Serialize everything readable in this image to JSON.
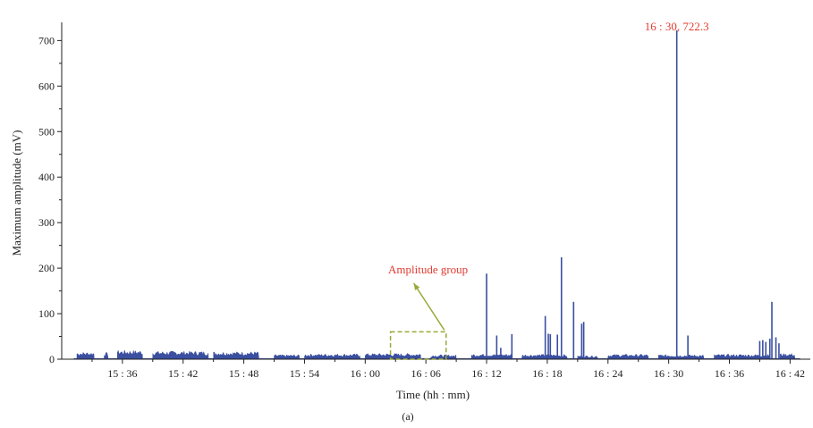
{
  "chart_data": {
    "type": "line",
    "title": "",
    "xlabel": "Time (hh : mm)",
    "ylabel": "Maximum amplitude (mV)",
    "caption": "(a)",
    "xlim_minutes": [
      15.5,
      16.7
    ],
    "x_range_hhmm": [
      "15:30",
      "16:44"
    ],
    "ylim": [
      0,
      740
    ],
    "yticks": [
      0,
      100,
      200,
      300,
      400,
      500,
      600,
      700
    ],
    "ytick_labels": [
      "0",
      "100",
      "200",
      "300",
      "400",
      "500",
      "600",
      "700"
    ],
    "xtick_minutes": [
      6,
      12,
      18,
      24,
      30,
      36,
      42,
      48,
      54,
      60,
      66,
      72
    ],
    "xtick_labels": [
      "15 : 36",
      "15 : 42",
      "15 : 48",
      "15 : 54",
      "16 : 00",
      "16 : 06",
      "16 : 12",
      "16 : 18",
      "16 : 24",
      "16 : 30",
      "16 : 36",
      "16 : 42"
    ],
    "series_color": "#3a4fa0",
    "baseline_segments_minutes": [
      [
        1.5,
        3.2,
        16
      ],
      [
        4.2,
        4.6,
        15
      ],
      [
        5.5,
        8.0,
        20
      ],
      [
        9.0,
        14.5,
        18
      ],
      [
        15.0,
        19.5,
        17
      ],
      [
        21.0,
        23.5,
        10
      ],
      [
        24.0,
        29.5,
        12
      ],
      [
        30.0,
        35.5,
        13
      ],
      [
        36.5,
        39.0,
        10
      ],
      [
        40.5,
        44.5,
        12
      ],
      [
        45.5,
        50.0,
        11
      ],
      [
        51.0,
        53.0,
        8
      ],
      [
        54.0,
        58.0,
        11
      ],
      [
        59.0,
        63.5,
        10
      ],
      [
        64.5,
        70.0,
        11
      ],
      [
        71.0,
        72.5,
        13
      ]
    ],
    "spikes": [
      {
        "t_min": 42.0,
        "value": 188
      },
      {
        "t_min": 43.0,
        "value": 52
      },
      {
        "t_min": 43.4,
        "value": 25
      },
      {
        "t_min": 44.5,
        "value": 55
      },
      {
        "t_min": 47.8,
        "value": 95
      },
      {
        "t_min": 48.1,
        "value": 56
      },
      {
        "t_min": 48.3,
        "value": 55
      },
      {
        "t_min": 49.0,
        "value": 54
      },
      {
        "t_min": 49.4,
        "value": 224
      },
      {
        "t_min": 50.6,
        "value": 126
      },
      {
        "t_min": 51.4,
        "value": 78
      },
      {
        "t_min": 51.6,
        "value": 82
      },
      {
        "t_min": 60.8,
        "value": 722.3
      },
      {
        "t_min": 61.9,
        "value": 52
      },
      {
        "t_min": 69.0,
        "value": 40
      },
      {
        "t_min": 69.3,
        "value": 42
      },
      {
        "t_min": 69.6,
        "value": 38
      },
      {
        "t_min": 70.0,
        "value": 45
      },
      {
        "t_min": 70.2,
        "value": 126
      },
      {
        "t_min": 70.6,
        "value": 48
      },
      {
        "t_min": 70.9,
        "value": 35
      }
    ],
    "annotations": {
      "peak_label": "16 : 30, 722.3",
      "group_label": "Amplitude group",
      "group_box_minutes": [
        32.5,
        38.0
      ],
      "group_box_value_range": [
        0,
        60
      ],
      "group_color": "#9aa83a",
      "label_color": "#e03c31"
    }
  }
}
